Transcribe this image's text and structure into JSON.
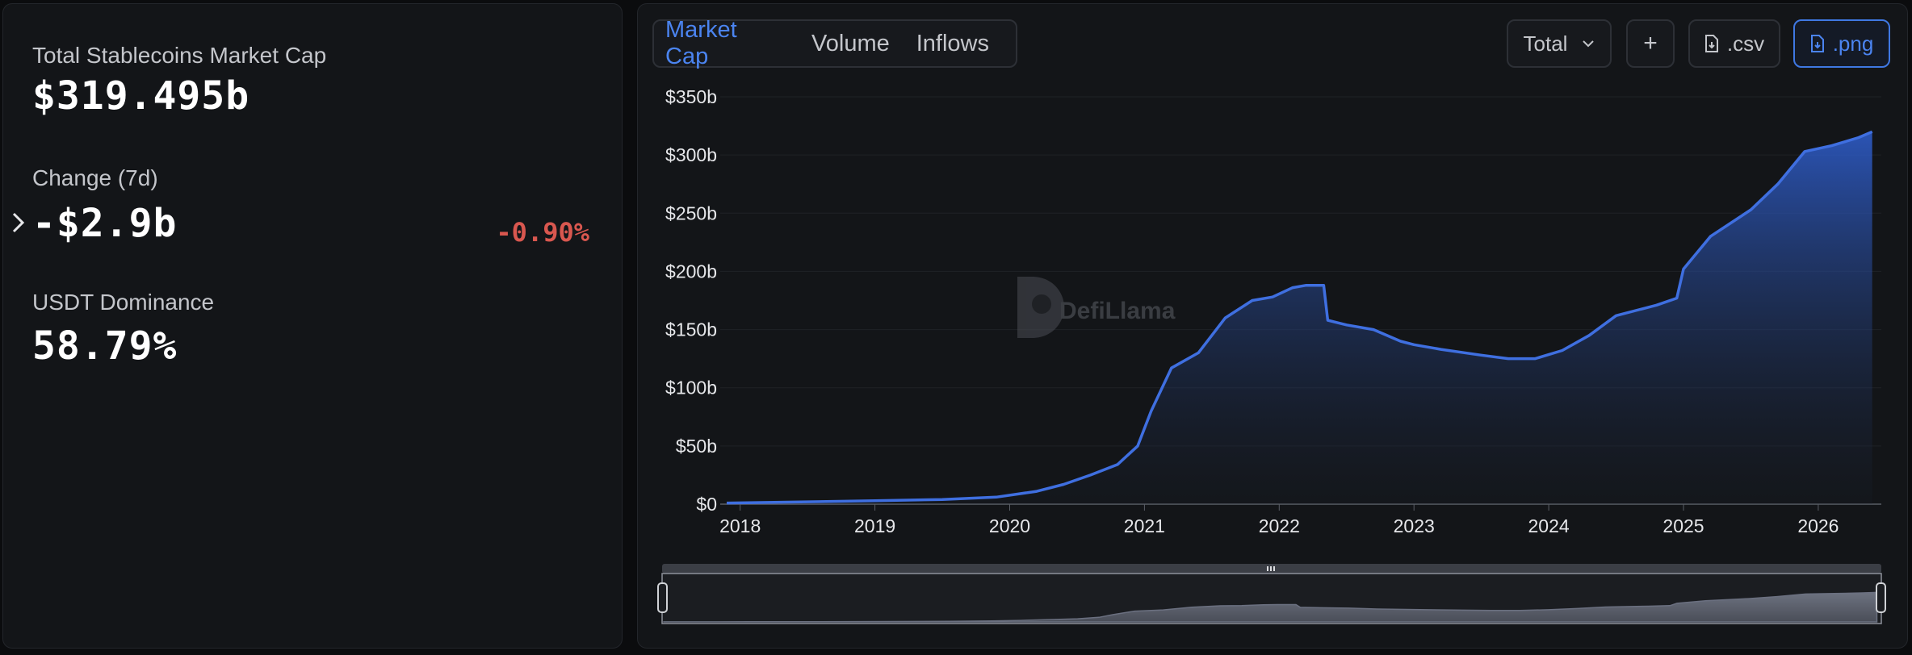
{
  "summary": {
    "market_cap_label": "Total Stablecoins Market Cap",
    "market_cap_value": "$319.495b",
    "change_label": "Change (7d)",
    "change_value": "-$2.9b",
    "change_pct": "-0.90%",
    "dominance_label": "USDT Dominance",
    "dominance_value": "58.79%"
  },
  "tabs": [
    {
      "label": "Market Cap",
      "active": true
    },
    {
      "label": "Volume",
      "active": false
    },
    {
      "label": "Inflows",
      "active": false
    }
  ],
  "controls": {
    "select_value": "Total",
    "add_label": "+",
    "csv_label": ".csv",
    "png_label": ".png"
  },
  "watermark": "DefiLlama",
  "colors": {
    "accent": "#3f78e3",
    "negative": "#d9574f",
    "panel": "#131518",
    "background": "#0b0c0e"
  },
  "chart_data": {
    "type": "area",
    "title": "",
    "xlabel": "",
    "ylabel": "",
    "y_tick_labels": [
      "$0",
      "$50b",
      "$100b",
      "$150b",
      "$200b",
      "$250b",
      "$300b",
      "$350b"
    ],
    "x_tick_labels": [
      "2018",
      "2019",
      "2020",
      "2021",
      "2022",
      "2023",
      "2024",
      "2025",
      "2026"
    ],
    "ylim": [
      0,
      350
    ],
    "xlim": [
      2017.9,
      2026.42
    ],
    "grid": true,
    "series": [
      {
        "x": [
          2017.9,
          2018.5,
          2019.0,
          2019.5,
          2019.9,
          2020.2,
          2020.4,
          2020.6,
          2020.8,
          2020.95,
          2021.05,
          2021.2,
          2021.4,
          2021.6,
          2021.8,
          2021.95,
          2022.1,
          2022.2,
          2022.33,
          2022.36,
          2022.5,
          2022.7,
          2022.9,
          2023.0,
          2023.2,
          2023.5,
          2023.7,
          2023.9,
          2024.1,
          2024.3,
          2024.5,
          2024.8,
          2024.95,
          2025.0,
          2025.2,
          2025.5,
          2025.7,
          2025.9,
          2026.1,
          2026.3,
          2026.4
        ],
        "y": [
          1,
          2,
          3,
          4,
          6,
          11,
          17,
          25,
          34,
          50,
          80,
          117,
          130,
          160,
          175,
          178,
          186,
          188,
          188,
          158,
          154,
          150,
          140,
          137,
          133,
          128,
          125,
          125,
          132,
          145,
          162,
          171,
          177,
          202,
          230,
          253,
          275,
          303,
          308,
          315,
          320
        ]
      }
    ]
  }
}
